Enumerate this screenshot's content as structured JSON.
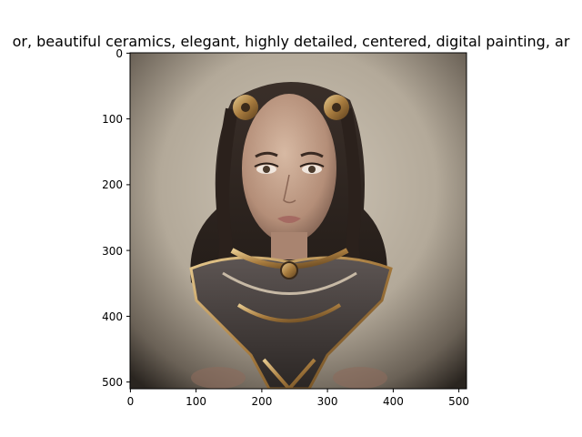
{
  "figure": {
    "title": "or,  beautiful ceramics, elegant, highly detailed, centered, digital painting, ar",
    "image_description": "AI-generated portrait of a young woman with long dark wavy hair, ornate bronze floral hair pieces, and an elaborate gold, silver and dark metallic armored collar, on a muted beige vignette background",
    "x_ticks": [
      "0",
      "100",
      "200",
      "300",
      "400",
      "500"
    ],
    "y_ticks": [
      "0",
      "100",
      "200",
      "300",
      "400",
      "500"
    ],
    "image_size": [
      512,
      512
    ]
  }
}
